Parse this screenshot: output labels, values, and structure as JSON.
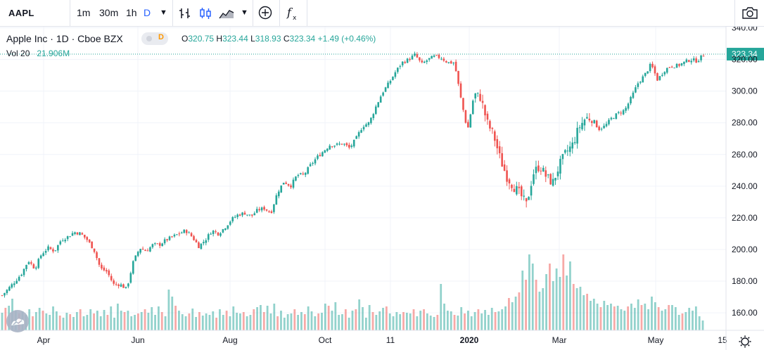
{
  "toolbar": {
    "symbol": "AAPL",
    "intervals": [
      "1m",
      "30m",
      "1h",
      "D"
    ],
    "active_interval": "D",
    "accent": "#2962ff"
  },
  "legend": {
    "title": "Apple Inc · 1D · Cboe BZX",
    "badge": "D",
    "open_label": "O",
    "open": "320.75",
    "high_label": "H",
    "high": "323.44",
    "low_label": "L",
    "low": "318.93",
    "close_label": "C",
    "close": "323.34",
    "change": "+1.49 (+0.46%)",
    "vol_label": "Vol 20",
    "vol_value": "21.906M"
  },
  "colors": {
    "up": "#26a69a",
    "down": "#ef5350",
    "grid": "#f0f3fa",
    "text": "#131722"
  },
  "chart_data": {
    "type": "candlestick",
    "y_axis_ticks": [
      "340.00",
      "320.00",
      "300.00",
      "280.00",
      "260.00",
      "240.00",
      "220.00",
      "200.00",
      "180.00",
      "160.00"
    ],
    "ylim": [
      156,
      342
    ],
    "x_axis_labels": [
      "Apr",
      "Jun",
      "Aug",
      "Oct",
      "11",
      "2020",
      "Mar",
      "May",
      "15"
    ],
    "x_axis_bold": [
      "2020"
    ],
    "last_price": "323.34",
    "series_path": [
      [
        0,
        171
      ],
      [
        2,
        180
      ],
      [
        3,
        185
      ],
      [
        4,
        193
      ],
      [
        5,
        188
      ],
      [
        6,
        197
      ],
      [
        7,
        201
      ],
      [
        8,
        199
      ],
      [
        9,
        206
      ],
      [
        10,
        208
      ],
      [
        11,
        211
      ],
      [
        12,
        210
      ],
      [
        13,
        206
      ],
      [
        14,
        200
      ],
      [
        15,
        188
      ],
      [
        16,
        186
      ],
      [
        17,
        178
      ],
      [
        18,
        178
      ],
      [
        19,
        175
      ],
      [
        20,
        192
      ],
      [
        21,
        201
      ],
      [
        22,
        199
      ],
      [
        23,
        203
      ],
      [
        24,
        203
      ],
      [
        25,
        206
      ],
      [
        26,
        208
      ],
      [
        27,
        210
      ],
      [
        28,
        212
      ],
      [
        29,
        208
      ],
      [
        30,
        202
      ],
      [
        31,
        206
      ],
      [
        32,
        212
      ],
      [
        33,
        210
      ],
      [
        34,
        214
      ],
      [
        35,
        219
      ],
      [
        36,
        222
      ],
      [
        37,
        223
      ],
      [
        38,
        221
      ],
      [
        39,
        225
      ],
      [
        40,
        226
      ],
      [
        41,
        223
      ],
      [
        42,
        236
      ],
      [
        43,
        243
      ],
      [
        44,
        240
      ],
      [
        45,
        247
      ],
      [
        46,
        247
      ],
      [
        47,
        253
      ],
      [
        48,
        258
      ],
      [
        49,
        262
      ],
      [
        50,
        266
      ],
      [
        51,
        266
      ],
      [
        52,
        267
      ],
      [
        53,
        264
      ],
      [
        54,
        270
      ],
      [
        55,
        278
      ],
      [
        56,
        280
      ],
      [
        57,
        290
      ],
      [
        58,
        299
      ],
      [
        59,
        305
      ],
      [
        60,
        312
      ],
      [
        61,
        318
      ],
      [
        62,
        320
      ],
      [
        63,
        323
      ],
      [
        64,
        317
      ],
      [
        65,
        320
      ],
      [
        66,
        322
      ],
      [
        67,
        321
      ],
      [
        68,
        318
      ],
      [
        69,
        318
      ],
      [
        70,
        295
      ],
      [
        71,
        275
      ],
      [
        72,
        298
      ],
      [
        73,
        296
      ],
      [
        74,
        280
      ],
      [
        75,
        272
      ],
      [
        76,
        257
      ],
      [
        77,
        246
      ],
      [
        78,
        240
      ],
      [
        79,
        235
      ],
      [
        80,
        228
      ],
      [
        81,
        248
      ],
      [
        82,
        253
      ],
      [
        83,
        246
      ],
      [
        84,
        242
      ],
      [
        85,
        253
      ],
      [
        86,
        261
      ],
      [
        87,
        266
      ],
      [
        88,
        277
      ],
      [
        89,
        283
      ],
      [
        90,
        283
      ],
      [
        91,
        276
      ],
      [
        92,
        278
      ],
      [
        93,
        283
      ],
      [
        94,
        286
      ],
      [
        95,
        288
      ],
      [
        96,
        296
      ],
      [
        97,
        305
      ],
      [
        98,
        310
      ],
      [
        99,
        317
      ],
      [
        100,
        307
      ],
      [
        101,
        313
      ],
      [
        102,
        316
      ],
      [
        103,
        316
      ],
      [
        104,
        318
      ],
      [
        105,
        320
      ],
      [
        106,
        319
      ],
      [
        107,
        323
      ]
    ],
    "volume_m": [
      25,
      32,
      35,
      45,
      28,
      24,
      27,
      22,
      30,
      20,
      26,
      32,
      28,
      24,
      22,
      34,
      27,
      21,
      18,
      25,
      23,
      19,
      26,
      30,
      20,
      22,
      30,
      24,
      28,
      20,
      29,
      22,
      34,
      18,
      38,
      28,
      26,
      28,
      20,
      22,
      24,
      26,
      30,
      25,
      33,
      22,
      34,
      26,
      20,
      58,
      48,
      35,
      28,
      23,
      20,
      24,
      31,
      19,
      26,
      21,
      24,
      22,
      27,
      18,
      30,
      22,
      28,
      20,
      34,
      25,
      24,
      26,
      20,
      22,
      30,
      33,
      36,
      26,
      35,
      24,
      38,
      20,
      28,
      18,
      23,
      24,
      30,
      22,
      26,
      23,
      34,
      27,
      20,
      24,
      25,
      38,
      35,
      28,
      40,
      22,
      23,
      30,
      18,
      28,
      30,
      44,
      33,
      18,
      36,
      26,
      22,
      27,
      32,
      34,
      24,
      20,
      26,
      23,
      26,
      25,
      24,
      30,
      20,
      28,
      30,
      24,
      21,
      19,
      22,
      66,
      38,
      28,
      27,
      22,
      21,
      33,
      24,
      28,
      20,
      26,
      30,
      24,
      29,
      22,
      32,
      26,
      27,
      30,
      34,
      46,
      40,
      48,
      54,
      85,
      72,
      108,
      95,
      72,
      55,
      60,
      80,
      95,
      70,
      88,
      76,
      108,
      78,
      98,
      66,
      60,
      62,
      50,
      52,
      42,
      45,
      38,
      33,
      42,
      36,
      38,
      34,
      35,
      30,
      28,
      34,
      38,
      32,
      44,
      36,
      38,
      30,
      48,
      40,
      33,
      28,
      30,
      36,
      36,
      33,
      22,
      24,
      26,
      32,
      28,
      34,
      20,
      14
    ],
    "volume_down": [
      1,
      5,
      9,
      12,
      17,
      20,
      23,
      27,
      31,
      36,
      40,
      42,
      47,
      51,
      55,
      58,
      63,
      66,
      71,
      74,
      77,
      81,
      86,
      89,
      93,
      96,
      101,
      104,
      109,
      113,
      118,
      121,
      124,
      128,
      133,
      136,
      140,
      145,
      149,
      152,
      154,
      157,
      161,
      165,
      168,
      172,
      176,
      180,
      184,
      188,
      193,
      196,
      200
    ]
  }
}
